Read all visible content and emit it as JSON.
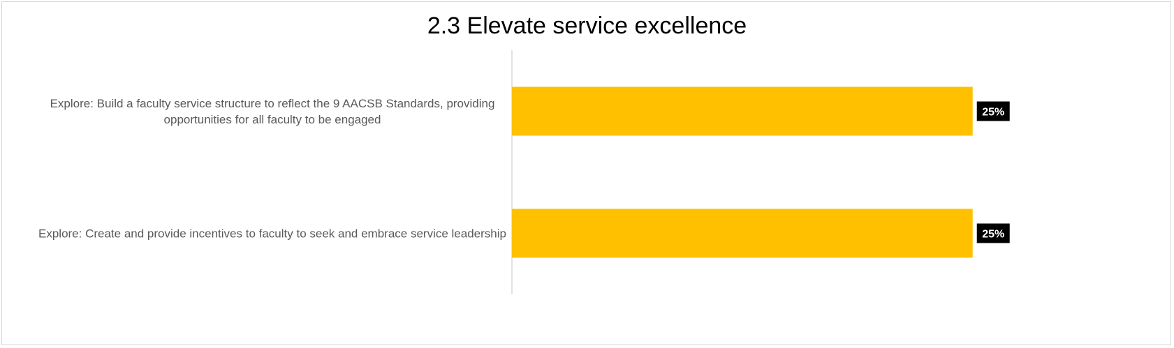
{
  "chart_data": {
    "type": "bar",
    "orientation": "horizontal",
    "title": "2.3 Elevate service excellence",
    "categories": [
      [
        "Explore: Build a faculty service structure to reflect the 9 AACSB Standards, providing",
        "opportunities for all faculty to be engaged"
      ],
      [
        "Explore: Create and provide incentives to faculty to seek and embrace service leadership"
      ]
    ],
    "values": [
      25,
      25
    ],
    "data_labels": [
      "25%",
      "25%"
    ],
    "xlim": [
      0,
      36
    ],
    "xlabel": "",
    "ylabel": "",
    "grid": false,
    "legend": "none",
    "colors": {
      "bar": "#FFC000",
      "label_bg": "#000000",
      "label_text": "#FFFFFF",
      "axis": "#D9D9D9",
      "category_text": "#595959"
    }
  }
}
